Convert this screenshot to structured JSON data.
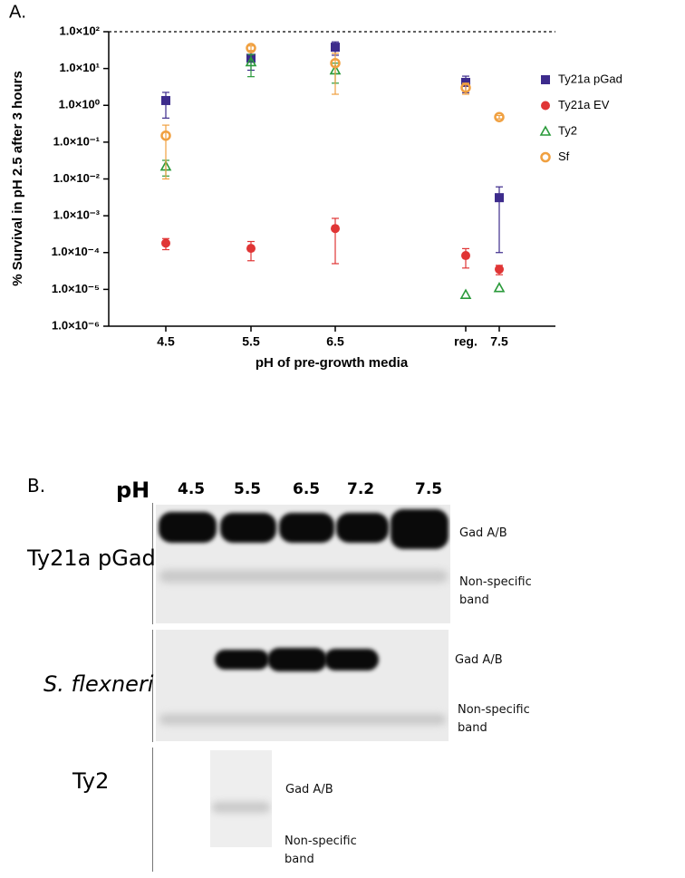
{
  "chart_data": {
    "type": "scatter",
    "panel_label": "A.",
    "y_label": "% Survival in pH 2.5 after 3 hours",
    "x_label": "pH of pre-growth media",
    "categories": [
      "4.5",
      "5.5",
      "6.5",
      "reg.",
      "7.5"
    ],
    "y_scale": "log",
    "ylim": [
      1e-06,
      100
    ],
    "yticks": [
      {
        "value": 100,
        "label": "1.0×10²"
      },
      {
        "value": 10,
        "label": "1.0×10¹"
      },
      {
        "value": 1,
        "label": "1.0×10⁰"
      },
      {
        "value": 0.1,
        "label": "1.0×10⁻¹"
      },
      {
        "value": 0.01,
        "label": "1.0×10⁻²"
      },
      {
        "value": 0.001,
        "label": "1.0×10⁻³"
      },
      {
        "value": 0.0001,
        "label": "1.0×10⁻⁴"
      },
      {
        "value": 1e-05,
        "label": "1.0×10⁻⁵"
      },
      {
        "value": 1e-06,
        "label": "1.0×10⁻⁶"
      }
    ],
    "legend": "right",
    "series": [
      {
        "name": "Ty21a pGad",
        "color": "#3d2b8c",
        "marker": "square",
        "values": [
          1.35,
          19,
          38,
          4.2,
          0.0031
        ],
        "errors": [
          0.9,
          10,
          15,
          2,
          0.003
        ]
      },
      {
        "name": "Ty21a EV",
        "color": "#e03535",
        "marker": "circle",
        "values": [
          0.00018,
          0.00013,
          0.00045,
          8.3e-05,
          3.5e-05
        ],
        "errors": [
          6e-05,
          7e-05,
          0.0004,
          4.5e-05,
          1e-05
        ]
      },
      {
        "name": "Ty2",
        "color": "#2a9a3a",
        "marker": "triangle",
        "values": [
          0.022,
          15,
          9,
          7.2e-06,
          1.1e-05
        ],
        "errors": [
          0.01,
          9,
          5,
          null,
          null
        ]
      },
      {
        "name": "Sf",
        "color": "#f0a040",
        "marker": "open-circle",
        "values": [
          0.15,
          36,
          14,
          3.0,
          0.48
        ],
        "errors": [
          0.14,
          5,
          12,
          1,
          0.05
        ]
      }
    ]
  },
  "panel_b": {
    "panel_label": "B.",
    "ph_label": "pH",
    "lanes": [
      "4.5",
      "5.5",
      "6.5",
      "7.2",
      "7.5"
    ],
    "blots": [
      {
        "name": "Ty21a pGad",
        "bands": [
          "Gad A/B",
          "Non-specific band"
        ]
      },
      {
        "name": "S. flexneri",
        "bands": [
          "Gad A/B",
          "Non-specific band"
        ]
      },
      {
        "name": "Ty2",
        "bands": [
          "Gad A/B",
          "Non-specific band"
        ]
      }
    ]
  }
}
